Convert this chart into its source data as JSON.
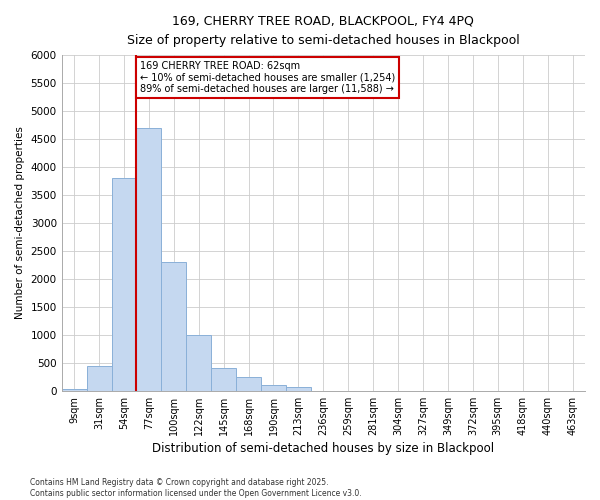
{
  "title_line1": "169, CHERRY TREE ROAD, BLACKPOOL, FY4 4PQ",
  "title_line2": "Size of property relative to semi-detached houses in Blackpool",
  "xlabel": "Distribution of semi-detached houses by size in Blackpool",
  "ylabel": "Number of semi-detached properties",
  "categories": [
    "9sqm",
    "31sqm",
    "54sqm",
    "77sqm",
    "100sqm",
    "122sqm",
    "145sqm",
    "168sqm",
    "190sqm",
    "213sqm",
    "236sqm",
    "259sqm",
    "281sqm",
    "304sqm",
    "327sqm",
    "349sqm",
    "372sqm",
    "395sqm",
    "418sqm",
    "440sqm",
    "463sqm"
  ],
  "bar_values": [
    30,
    450,
    3800,
    4700,
    2300,
    1000,
    400,
    250,
    100,
    70,
    0,
    0,
    0,
    0,
    0,
    0,
    0,
    0,
    0,
    0,
    0
  ],
  "bar_color": "#c5d8f0",
  "bar_edge_color": "#8ab0d8",
  "vline_color": "#cc0000",
  "vline_position": 2.5,
  "annotation_title": "169 CHERRY TREE ROAD: 62sqm",
  "annotation_line2": "← 10% of semi-detached houses are smaller (1,254)",
  "annotation_line3": "89% of semi-detached houses are larger (11,588) →",
  "annotation_box_color": "#cc0000",
  "ylim": [
    0,
    6000
  ],
  "yticks": [
    0,
    500,
    1000,
    1500,
    2000,
    2500,
    3000,
    3500,
    4000,
    4500,
    5000,
    5500,
    6000
  ],
  "grid_color": "#cccccc",
  "background_color": "#ffffff",
  "plot_bg_color": "#ffffff",
  "footnote": "Contains HM Land Registry data © Crown copyright and database right 2025.\nContains public sector information licensed under the Open Government Licence v3.0."
}
